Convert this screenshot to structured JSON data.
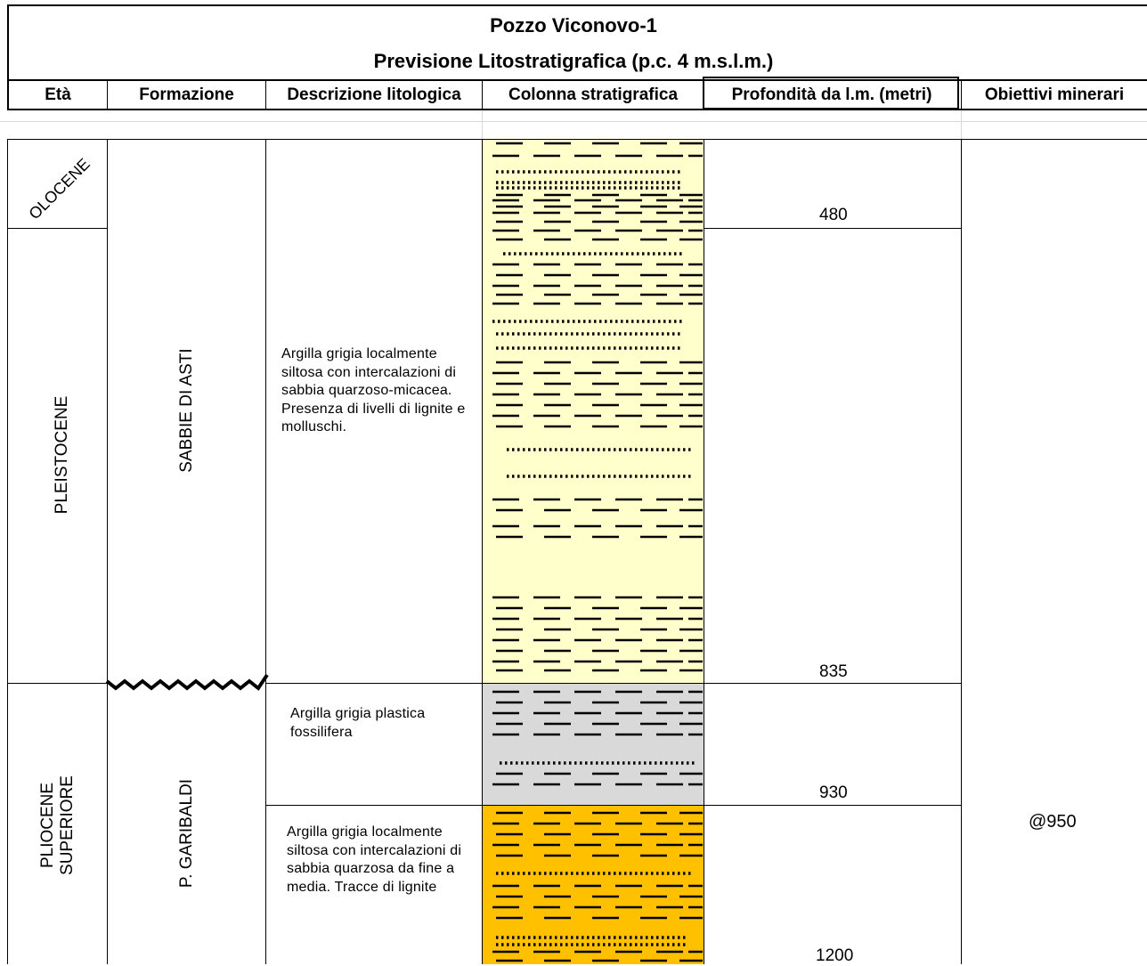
{
  "title": {
    "line1": "Pozzo Viconovo-1",
    "line2": "Previsione Litostratigrafica (p.c. 4 m.s.l.m.)"
  },
  "headers": {
    "eta": "Età",
    "formazione": "Formazione",
    "descrizione": "Descrizione litologica",
    "colonna": "Colonna stratigrafica",
    "profondita": "Profondità da l.m. (metri)",
    "obiettivi": "Obiettivi minerari"
  },
  "ages": {
    "olocene": "OLOCENE",
    "pleistocene": "PLEISTOCENE",
    "pliocene_line1": "PLIOCENE",
    "pliocene_line2": "SUPERIORE"
  },
  "formations": {
    "sabbie": "SABBIE DI ASTI",
    "garibaldi": "P. GARIBALDI"
  },
  "descriptions": {
    "d1": "Argilla grigia localmente siltosa con intercalazioni di sabbia quarzoso-micacea. Presenza di livelli di lignite e molluschi.",
    "d2": "Argilla grigia plastica fossilifera",
    "d3": "Argilla grigia localmente siltosa con intercalazioni di sabbia quarzosa da fine a media. Tracce di lignite"
  },
  "depths": {
    "d480": "480",
    "d835": "835",
    "d930": "930",
    "d1200": "1200"
  },
  "objective": "@950",
  "colors": {
    "layer_yellow": "#ffffcc",
    "layer_grey": "#d9d9d9",
    "layer_orange": "#ffc000",
    "grid_light": "#d9d9d9"
  }
}
